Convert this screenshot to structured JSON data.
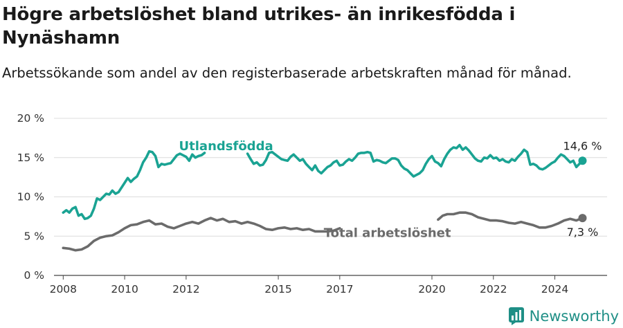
{
  "title": "Högre arbetslöshet bland utrikes- än inrikesfödda i Nynäshamn",
  "subtitle": "Arbetssökande som andel av den registerbaserade arbetskraften månad för månad.",
  "brand": "Newsworthy",
  "chart_data": {
    "type": "line",
    "ylim": [
      0,
      20
    ],
    "xlim": [
      2007.7,
      2025.7
    ],
    "y_ticks": [
      {
        "value": 0,
        "label": "0 %"
      },
      {
        "value": 5,
        "label": "5 %"
      },
      {
        "value": 10,
        "label": "10 %"
      },
      {
        "value": 15,
        "label": "15 %"
      },
      {
        "value": 20,
        "label": "20 %"
      }
    ],
    "x_ticks": [
      {
        "value": 2008,
        "label": "2008"
      },
      {
        "value": 2010,
        "label": "2010"
      },
      {
        "value": 2012,
        "label": "2012"
      },
      {
        "value": 2015,
        "label": "2015"
      },
      {
        "value": 2017,
        "label": "2017"
      },
      {
        "value": 2020,
        "label": "2020"
      },
      {
        "value": 2022,
        "label": "2022"
      },
      {
        "value": 2024,
        "label": "2024"
      }
    ],
    "grid": true,
    "series": [
      {
        "name": "Utlandsfödda",
        "color": "#1aa393",
        "end_label": "14,6 %",
        "segments": [
          [
            [
              2008.0,
              8.0
            ],
            [
              2008.1,
              8.3
            ],
            [
              2008.2,
              8.0
            ],
            [
              2008.3,
              8.5
            ],
            [
              2008.4,
              8.7
            ],
            [
              2008.5,
              7.6
            ],
            [
              2008.6,
              7.8
            ],
            [
              2008.7,
              7.2
            ],
            [
              2008.8,
              7.3
            ],
            [
              2008.9,
              7.6
            ],
            [
              2009.0,
              8.5
            ],
            [
              2009.1,
              9.8
            ],
            [
              2009.2,
              9.6
            ],
            [
              2009.3,
              10.0
            ],
            [
              2009.4,
              10.4
            ],
            [
              2009.5,
              10.3
            ],
            [
              2009.6,
              10.8
            ],
            [
              2009.7,
              10.4
            ],
            [
              2009.8,
              10.6
            ],
            [
              2009.9,
              11.2
            ],
            [
              2010.0,
              11.8
            ],
            [
              2010.1,
              12.4
            ],
            [
              2010.2,
              11.9
            ],
            [
              2010.3,
              12.3
            ],
            [
              2010.4,
              12.6
            ],
            [
              2010.5,
              13.4
            ],
            [
              2010.6,
              14.4
            ],
            [
              2010.7,
              15.0
            ],
            [
              2010.8,
              15.8
            ],
            [
              2010.9,
              15.7
            ],
            [
              2011.0,
              15.2
            ],
            [
              2011.1,
              13.8
            ],
            [
              2011.2,
              14.2
            ],
            [
              2011.3,
              14.1
            ],
            [
              2011.4,
              14.2
            ],
            [
              2011.5,
              14.3
            ],
            [
              2011.6,
              14.8
            ],
            [
              2011.7,
              15.3
            ],
            [
              2011.8,
              15.5
            ],
            [
              2011.9,
              15.3
            ],
            [
              2012.0,
              15.1
            ],
            [
              2012.1,
              14.6
            ],
            [
              2012.2,
              15.4
            ],
            [
              2012.3,
              15.0
            ],
            [
              2012.4,
              15.2
            ],
            [
              2012.5,
              15.3
            ],
            [
              2012.6,
              15.6
            ]
          ],
          [
            [
              2014.0,
              15.5
            ],
            [
              2014.1,
              14.8
            ],
            [
              2014.2,
              14.2
            ],
            [
              2014.3,
              14.4
            ],
            [
              2014.4,
              14.0
            ],
            [
              2014.5,
              14.1
            ],
            [
              2014.6,
              14.7
            ],
            [
              2014.7,
              15.6
            ],
            [
              2014.8,
              15.7
            ],
            [
              2014.9,
              15.4
            ],
            [
              2015.0,
              15.1
            ],
            [
              2015.1,
              14.8
            ],
            [
              2015.2,
              14.7
            ],
            [
              2015.3,
              14.6
            ],
            [
              2015.4,
              15.1
            ],
            [
              2015.5,
              15.4
            ],
            [
              2015.6,
              15.0
            ],
            [
              2015.7,
              14.6
            ],
            [
              2015.8,
              14.8
            ],
            [
              2015.9,
              14.2
            ],
            [
              2016.0,
              13.8
            ],
            [
              2016.1,
              13.4
            ],
            [
              2016.2,
              14.0
            ],
            [
              2016.3,
              13.3
            ],
            [
              2016.4,
              13.0
            ],
            [
              2016.5,
              13.4
            ],
            [
              2016.6,
              13.8
            ],
            [
              2016.7,
              14.0
            ],
            [
              2016.8,
              14.4
            ],
            [
              2016.9,
              14.6
            ],
            [
              2017.0,
              14.0
            ],
            [
              2017.1,
              14.1
            ],
            [
              2017.2,
              14.5
            ],
            [
              2017.3,
              14.8
            ],
            [
              2017.4,
              14.6
            ],
            [
              2017.5,
              15.0
            ],
            [
              2017.6,
              15.5
            ],
            [
              2017.7,
              15.6
            ],
            [
              2017.8,
              15.6
            ],
            [
              2017.9,
              15.7
            ],
            [
              2018.0,
              15.6
            ],
            [
              2018.1,
              14.5
            ],
            [
              2018.2,
              14.7
            ],
            [
              2018.3,
              14.6
            ],
            [
              2018.4,
              14.4
            ],
            [
              2018.5,
              14.3
            ],
            [
              2018.6,
              14.6
            ],
            [
              2018.7,
              14.9
            ],
            [
              2018.8,
              14.9
            ],
            [
              2018.9,
              14.7
            ],
            [
              2019.0,
              14.0
            ],
            [
              2019.1,
              13.6
            ],
            [
              2019.2,
              13.4
            ],
            [
              2019.3,
              13.0
            ],
            [
              2019.4,
              12.6
            ],
            [
              2019.5,
              12.8
            ],
            [
              2019.6,
              13.0
            ],
            [
              2019.7,
              13.4
            ],
            [
              2019.8,
              14.2
            ],
            [
              2019.9,
              14.8
            ],
            [
              2020.0,
              15.2
            ],
            [
              2020.1,
              14.5
            ],
            [
              2020.2,
              14.3
            ],
            [
              2020.3,
              13.9
            ],
            [
              2020.4,
              14.8
            ],
            [
              2020.5,
              15.5
            ],
            [
              2020.6,
              16.0
            ],
            [
              2020.7,
              16.3
            ],
            [
              2020.8,
              16.2
            ],
            [
              2020.9,
              16.6
            ],
            [
              2021.0,
              16.0
            ],
            [
              2021.1,
              16.3
            ],
            [
              2021.2,
              15.9
            ],
            [
              2021.3,
              15.4
            ],
            [
              2021.4,
              14.9
            ],
            [
              2021.5,
              14.6
            ],
            [
              2021.6,
              14.5
            ],
            [
              2021.7,
              15.0
            ],
            [
              2021.8,
              14.9
            ],
            [
              2021.9,
              15.3
            ],
            [
              2022.0,
              14.9
            ],
            [
              2022.1,
              15.0
            ],
            [
              2022.2,
              14.6
            ],
            [
              2022.3,
              14.8
            ],
            [
              2022.4,
              14.5
            ],
            [
              2022.5,
              14.4
            ],
            [
              2022.6,
              14.8
            ],
            [
              2022.7,
              14.6
            ],
            [
              2022.8,
              15.1
            ],
            [
              2022.9,
              15.5
            ],
            [
              2023.0,
              16.0
            ],
            [
              2023.1,
              15.7
            ],
            [
              2023.2,
              14.1
            ],
            [
              2023.3,
              14.2
            ],
            [
              2023.4,
              14.0
            ],
            [
              2023.5,
              13.6
            ],
            [
              2023.6,
              13.5
            ],
            [
              2023.7,
              13.7
            ],
            [
              2023.8,
              14.0
            ],
            [
              2023.9,
              14.3
            ],
            [
              2024.0,
              14.5
            ],
            [
              2024.1,
              15.0
            ],
            [
              2024.2,
              15.4
            ],
            [
              2024.3,
              15.2
            ],
            [
              2024.4,
              14.8
            ],
            [
              2024.5,
              14.4
            ],
            [
              2024.6,
              14.6
            ],
            [
              2024.7,
              13.8
            ],
            [
              2024.8,
              14.2
            ],
            [
              2024.9,
              14.6
            ]
          ]
        ]
      },
      {
        "name": "Total arbetslöshet",
        "color": "#6b6b6b",
        "end_label": "7,3 %",
        "segments": [
          [
            [
              2008.0,
              3.5
            ],
            [
              2008.2,
              3.4
            ],
            [
              2008.4,
              3.2
            ],
            [
              2008.6,
              3.3
            ],
            [
              2008.8,
              3.7
            ],
            [
              2009.0,
              4.4
            ],
            [
              2009.2,
              4.8
            ],
            [
              2009.4,
              5.0
            ],
            [
              2009.6,
              5.1
            ],
            [
              2009.8,
              5.5
            ],
            [
              2010.0,
              6.0
            ],
            [
              2010.2,
              6.4
            ],
            [
              2010.4,
              6.5
            ],
            [
              2010.6,
              6.8
            ],
            [
              2010.8,
              7.0
            ],
            [
              2011.0,
              6.5
            ],
            [
              2011.2,
              6.6
            ],
            [
              2011.4,
              6.2
            ],
            [
              2011.6,
              6.0
            ],
            [
              2011.8,
              6.3
            ],
            [
              2012.0,
              6.6
            ],
            [
              2012.2,
              6.8
            ],
            [
              2012.4,
              6.6
            ],
            [
              2012.6,
              7.0
            ],
            [
              2012.8,
              7.3
            ],
            [
              2013.0,
              7.0
            ],
            [
              2013.2,
              7.2
            ],
            [
              2013.4,
              6.8
            ],
            [
              2013.6,
              6.9
            ],
            [
              2013.8,
              6.6
            ],
            [
              2014.0,
              6.8
            ],
            [
              2014.2,
              6.6
            ],
            [
              2014.4,
              6.3
            ],
            [
              2014.6,
              5.9
            ],
            [
              2014.8,
              5.8
            ],
            [
              2015.0,
              6.0
            ],
            [
              2015.2,
              6.1
            ],
            [
              2015.4,
              5.9
            ],
            [
              2015.6,
              6.0
            ],
            [
              2015.8,
              5.8
            ],
            [
              2016.0,
              5.9
            ],
            [
              2016.2,
              5.6
            ],
            [
              2016.4,
              5.6
            ],
            [
              2016.6,
              5.6
            ],
            [
              2016.8,
              5.7
            ],
            [
              2017.0,
              6.0
            ]
          ],
          [
            [
              2020.2,
              7.1
            ],
            [
              2020.35,
              7.6
            ],
            [
              2020.5,
              7.8
            ],
            [
              2020.7,
              7.8
            ],
            [
              2020.9,
              8.0
            ],
            [
              2021.1,
              8.0
            ],
            [
              2021.3,
              7.8
            ],
            [
              2021.5,
              7.4
            ],
            [
              2021.7,
              7.2
            ],
            [
              2021.9,
              7.0
            ],
            [
              2022.1,
              7.0
            ],
            [
              2022.3,
              6.9
            ],
            [
              2022.5,
              6.7
            ],
            [
              2022.7,
              6.6
            ],
            [
              2022.9,
              6.8
            ],
            [
              2023.1,
              6.6
            ],
            [
              2023.3,
              6.4
            ],
            [
              2023.5,
              6.1
            ],
            [
              2023.7,
              6.1
            ],
            [
              2023.9,
              6.3
            ],
            [
              2024.1,
              6.6
            ],
            [
              2024.3,
              7.0
            ],
            [
              2024.5,
              7.2
            ],
            [
              2024.7,
              7.0
            ],
            [
              2024.9,
              7.3
            ]
          ]
        ]
      }
    ]
  }
}
